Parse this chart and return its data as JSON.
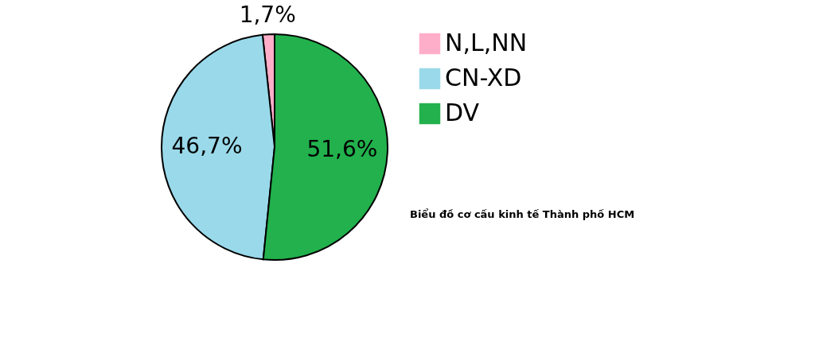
{
  "chart_data": {
    "type": "pie",
    "categories": [
      "N,L,NN",
      "CN-XD",
      "DV"
    ],
    "values": [
      1.7,
      46.7,
      51.6
    ],
    "colors": [
      "#ffaec9",
      "#99d9ea",
      "#22b14c"
    ],
    "value_labels": [
      "1,7%",
      "46,7%",
      "51,6%"
    ],
    "legend": "right",
    "annotations": [
      "Biểu đồ cơ cấu kinh tế Thành phố HCM"
    ]
  }
}
